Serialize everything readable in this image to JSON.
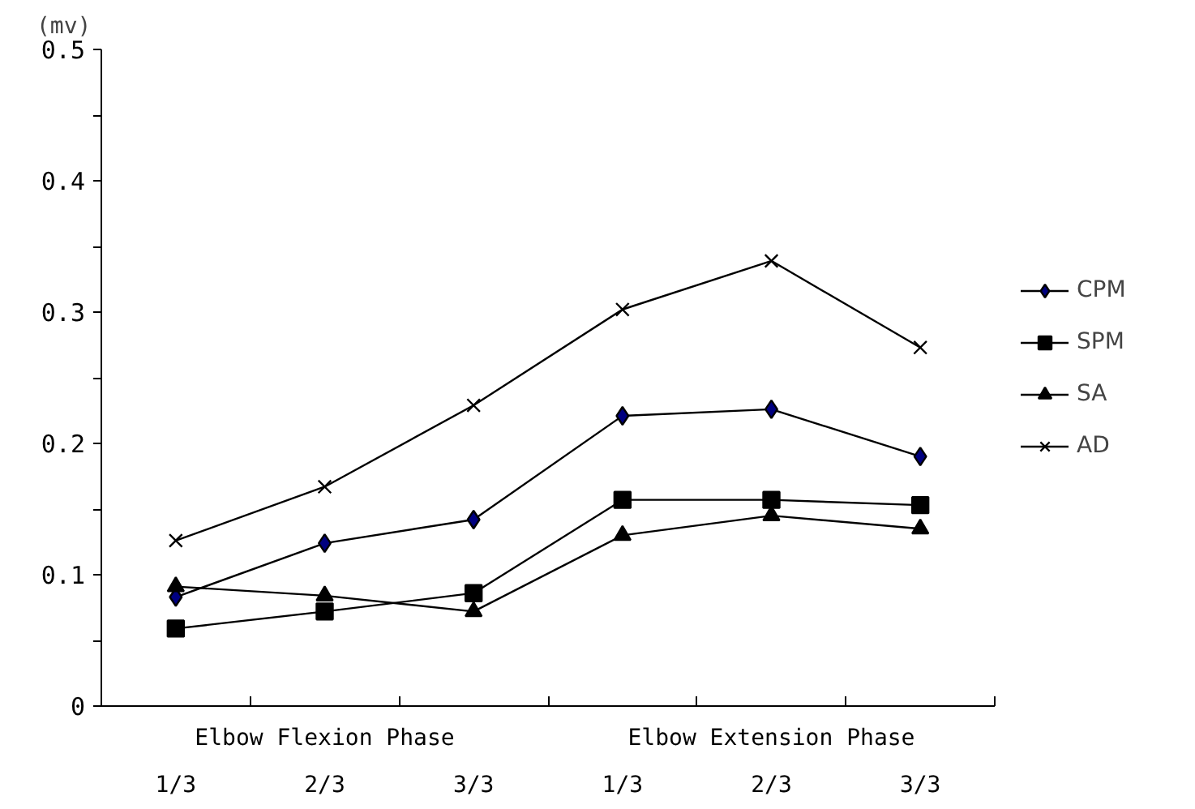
{
  "chart_data": {
    "type": "line",
    "ylabel": "(mv)",
    "categories": [
      "1/3",
      "2/3",
      "3/3",
      "1/3",
      "2/3",
      "3/3"
    ],
    "annotations": [
      "Elbow Flexion Phase",
      "Elbow Extension Phase"
    ],
    "ylim": [
      0,
      0.5
    ],
    "yticks": [
      0,
      {
        "value": 0.05,
        "label": null
      },
      0.1,
      {
        "value": 0.15,
        "label": null
      },
      0.2,
      {
        "value": 0.25,
        "label": null
      },
      0.3,
      {
        "value": 0.35,
        "label": null
      },
      0.4,
      {
        "value": 0.45,
        "label": null
      },
      0.5
    ],
    "grid": false,
    "legend": "right",
    "line_style": "solid",
    "series": [
      {
        "name": "CPM",
        "color": "#000080",
        "marker": "diamond",
        "values": [
          0.083,
          0.124,
          0.142,
          0.221,
          0.226,
          0.19
        ]
      },
      {
        "name": "SPM",
        "color": "#000000",
        "marker": "square",
        "values": [
          0.059,
          0.072,
          0.086,
          0.157,
          0.157,
          0.153
        ]
      },
      {
        "name": "SA",
        "color": "#000000",
        "marker": "triangle",
        "values": [
          0.091,
          0.084,
          0.072,
          0.13,
          0.145,
          0.135
        ]
      },
      {
        "name": "AD",
        "color": "#000000",
        "marker": "cross",
        "values": [
          0.126,
          0.167,
          0.229,
          0.302,
          0.339,
          0.273
        ]
      }
    ]
  }
}
